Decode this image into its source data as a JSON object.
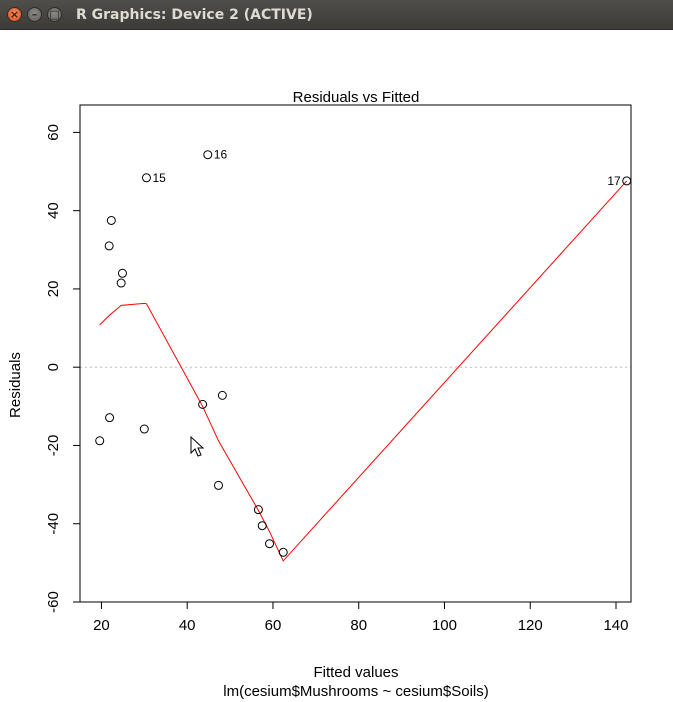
{
  "window": {
    "title": "R Graphics: Device 2 (ACTIVE)",
    "close_glyph": "×",
    "minimize_glyph": "–",
    "maximize_glyph": "□"
  },
  "chart_data": {
    "type": "scatter",
    "title": "Residuals vs Fitted",
    "xlabel": "Fitted values",
    "subtitle": "lm(cesium$Mushrooms ~ cesium$Soils)",
    "ylabel": "Residuals",
    "xlim": [
      15,
      143.5
    ],
    "ylim": [
      -60,
      67
    ],
    "x_ticks": [
      20,
      40,
      60,
      80,
      100,
      120,
      140
    ],
    "y_ticks": [
      -60,
      -40,
      -20,
      0,
      20,
      40,
      60
    ],
    "reference_line_y": 0,
    "points": [
      {
        "x": 19.6,
        "y": -18.8
      },
      {
        "x": 21.8,
        "y": 31.0
      },
      {
        "x": 21.9,
        "y": -12.9
      },
      {
        "x": 22.3,
        "y": 37.5
      },
      {
        "x": 24.6,
        "y": 21.5
      },
      {
        "x": 24.9,
        "y": 24.0
      },
      {
        "x": 30.0,
        "y": -15.8
      },
      {
        "x": 30.5,
        "y": 48.4
      },
      {
        "x": 43.6,
        "y": -9.5
      },
      {
        "x": 44.8,
        "y": 54.3
      },
      {
        "x": 47.3,
        "y": -30.2
      },
      {
        "x": 48.2,
        "y": -7.2
      },
      {
        "x": 56.6,
        "y": -36.4
      },
      {
        "x": 57.5,
        "y": -40.5
      },
      {
        "x": 59.2,
        "y": -45.1
      },
      {
        "x": 62.4,
        "y": -47.3
      },
      {
        "x": 142.5,
        "y": 47.6
      }
    ],
    "point_labels": [
      {
        "text": "15",
        "x": 30.5,
        "y": 48.4,
        "side": "right"
      },
      {
        "text": "16",
        "x": 44.8,
        "y": 54.3,
        "side": "right"
      },
      {
        "text": "17",
        "x": 142.5,
        "y": 47.6,
        "side": "left"
      }
    ],
    "smooth_line": {
      "color": "#ff0000",
      "points": [
        [
          19.6,
          10.8
        ],
        [
          21.8,
          13.2
        ],
        [
          24.6,
          15.8
        ],
        [
          30.0,
          16.3
        ],
        [
          30.5,
          16.2
        ],
        [
          43.6,
          -10.0
        ],
        [
          47.3,
          -18.8
        ],
        [
          56.6,
          -36.6
        ],
        [
          59.2,
          -42.0
        ],
        [
          62.4,
          -49.5
        ],
        [
          142.5,
          47.6
        ]
      ]
    },
    "point_color": "#000000",
    "reference_line_color": "#bebebe"
  }
}
